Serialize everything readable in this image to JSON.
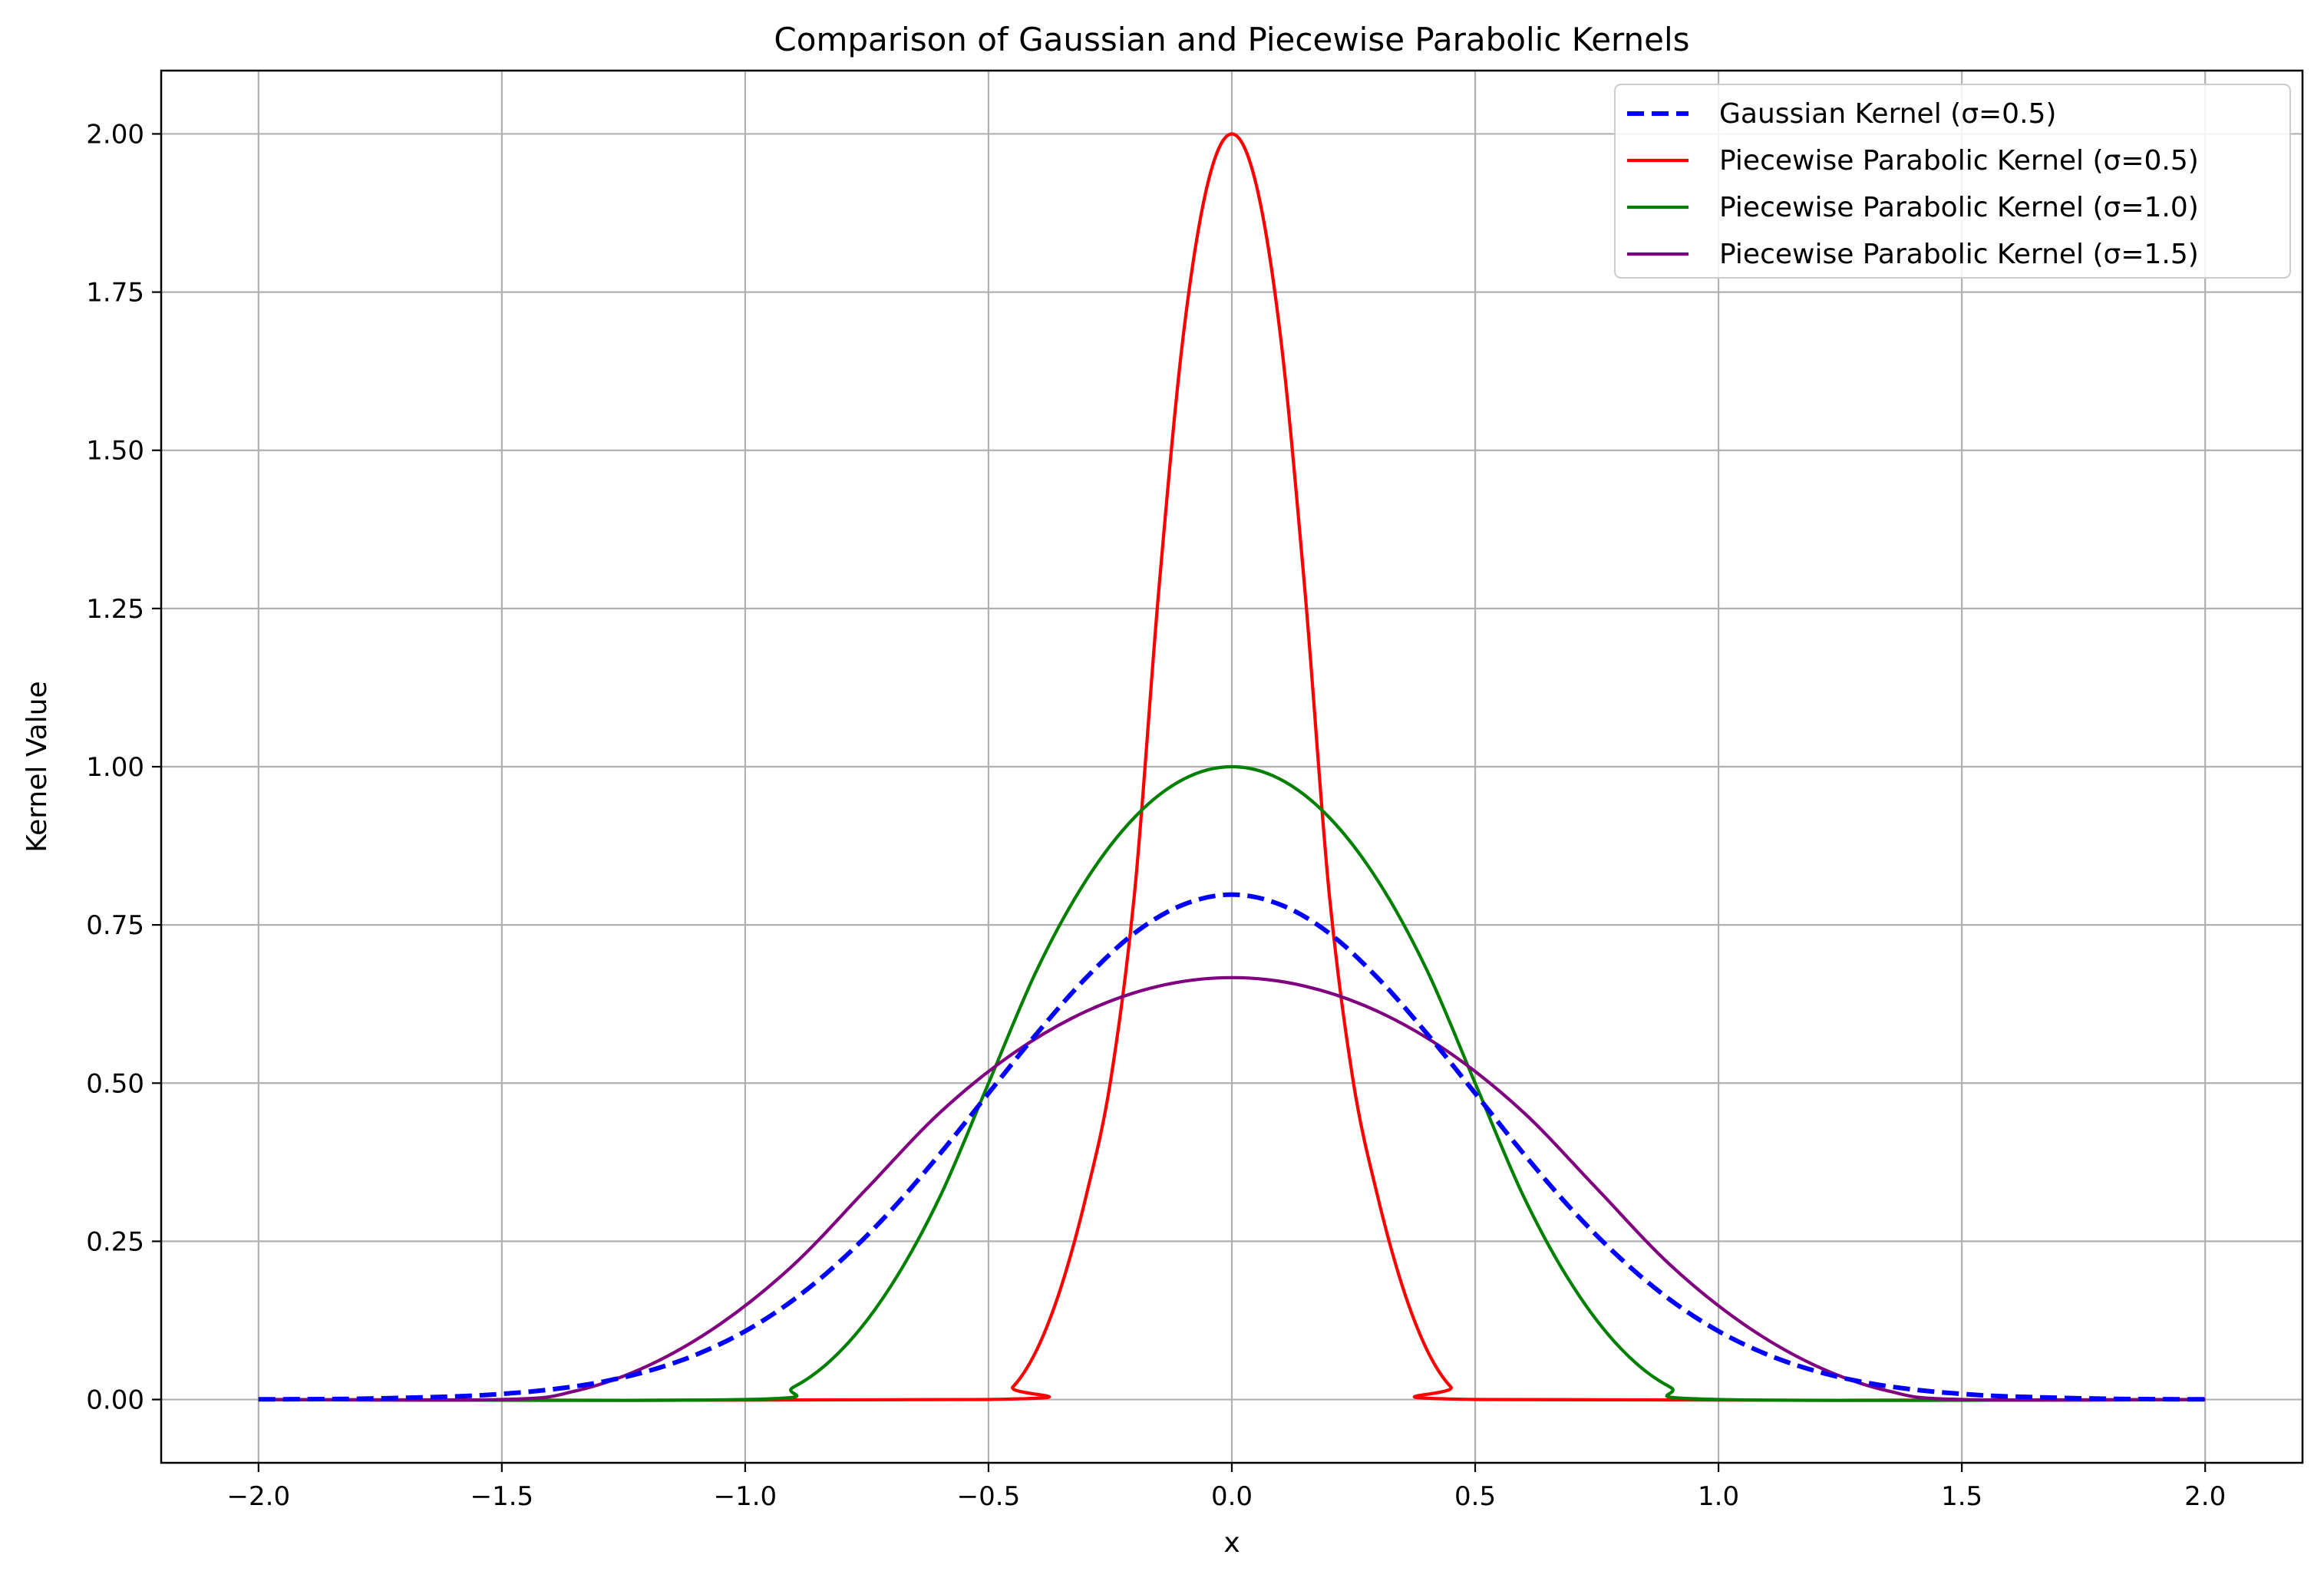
{
  "chart_data": {
    "type": "line",
    "title": "Comparison of Gaussian and Piecewise Parabolic Kernels",
    "xlabel": "x",
    "ylabel": "Kernel Value",
    "xlim": [
      -2.2,
      2.2
    ],
    "ylim": [
      -0.1,
      2.1
    ],
    "x_ticks": [
      -2.0,
      -1.5,
      -1.0,
      -0.5,
      0.0,
      0.5,
      1.0,
      1.5,
      2.0
    ],
    "x_tick_labels": [
      "−2.0",
      "−1.5",
      "−1.0",
      "−0.5",
      "0.0",
      "0.5",
      "1.0",
      "1.5",
      "2.0"
    ],
    "y_ticks": [
      0.0,
      0.25,
      0.5,
      0.75,
      1.0,
      1.25,
      1.5,
      1.75,
      2.0
    ],
    "y_tick_labels": [
      "0.00",
      "0.25",
      "0.50",
      "0.75",
      "1.00",
      "1.25",
      "1.50",
      "1.75",
      "2.00"
    ],
    "grid": true,
    "legend_position": "top-right",
    "series": [
      {
        "name": "Gaussian Kernel (σ=0.5)",
        "color": "#0000ff",
        "style": "dashed",
        "x": [
          -2.0,
          -1.8,
          -1.6,
          -1.5,
          -1.4,
          -1.3,
          -1.2,
          -1.1,
          -1.0,
          -0.9,
          -0.8,
          -0.7,
          -0.6,
          -0.5,
          -0.4,
          -0.3,
          -0.2,
          -0.1,
          0.0,
          0.1,
          0.2,
          0.3,
          0.4,
          0.5,
          0.6,
          0.7,
          0.8,
          0.9,
          1.0,
          1.1,
          1.2,
          1.3,
          1.4,
          1.5,
          1.6,
          1.8,
          2.0
        ],
        "y": [
          0.0003,
          0.0012,
          0.0048,
          0.0089,
          0.0158,
          0.0271,
          0.0449,
          0.0711,
          0.108,
          0.158,
          0.222,
          0.299,
          0.388,
          0.484,
          0.579,
          0.666,
          0.737,
          0.782,
          0.798,
          0.782,
          0.737,
          0.666,
          0.579,
          0.484,
          0.388,
          0.299,
          0.222,
          0.158,
          0.108,
          0.0711,
          0.0449,
          0.0271,
          0.0158,
          0.0089,
          0.0048,
          0.0012,
          0.0003
        ]
      },
      {
        "name": "Piecewise Parabolic Kernel (σ=0.5)",
        "color": "#ff0000",
        "style": "solid",
        "x": [
          -2.0,
          -0.5,
          -0.45,
          -0.4,
          -0.35,
          -0.3,
          -0.25,
          -0.2,
          -0.15,
          -0.1,
          -0.05,
          0.0,
          0.05,
          0.1,
          0.15,
          0.2,
          0.25,
          0.3,
          0.35,
          0.4,
          0.45,
          0.5,
          2.0
        ],
        "y": [
          0.0,
          0.0,
          0.02,
          0.08,
          0.18,
          0.32,
          0.5,
          0.8,
          1.28,
          1.68,
          1.92,
          2.0,
          1.92,
          1.68,
          1.28,
          0.8,
          0.5,
          0.32,
          0.18,
          0.08,
          0.02,
          0.0,
          0.0
        ]
      },
      {
        "name": "Piecewise Parabolic Kernel (σ=1.0)",
        "color": "#008000",
        "style": "solid",
        "x": [
          -2.0,
          -1.0,
          -0.9,
          -0.8,
          -0.7,
          -0.6,
          -0.5,
          -0.4,
          -0.3,
          -0.2,
          -0.1,
          0.0,
          0.1,
          0.2,
          0.3,
          0.4,
          0.5,
          0.6,
          0.7,
          0.8,
          0.9,
          1.0,
          2.0
        ],
        "y": [
          0.0,
          0.0,
          0.02,
          0.08,
          0.18,
          0.32,
          0.5,
          0.68,
          0.82,
          0.92,
          0.98,
          1.0,
          0.98,
          0.92,
          0.82,
          0.68,
          0.5,
          0.32,
          0.18,
          0.08,
          0.02,
          0.0,
          0.0
        ]
      },
      {
        "name": "Piecewise Parabolic Kernel (σ=1.5)",
        "color": "#800080",
        "style": "solid",
        "x": [
          -2.0,
          -1.5,
          -1.35,
          -1.2,
          -1.05,
          -0.9,
          -0.75,
          -0.6,
          -0.45,
          -0.3,
          -0.15,
          0.0,
          0.15,
          0.3,
          0.45,
          0.6,
          0.75,
          0.9,
          1.05,
          1.2,
          1.35,
          1.5,
          2.0
        ],
        "y": [
          0.0,
          0.0,
          0.0133,
          0.0533,
          0.12,
          0.2133,
          0.3333,
          0.4533,
          0.5467,
          0.6133,
          0.6533,
          0.6667,
          0.6533,
          0.6133,
          0.5467,
          0.4533,
          0.3333,
          0.2133,
          0.12,
          0.0533,
          0.0133,
          0.0,
          0.0
        ]
      }
    ]
  }
}
